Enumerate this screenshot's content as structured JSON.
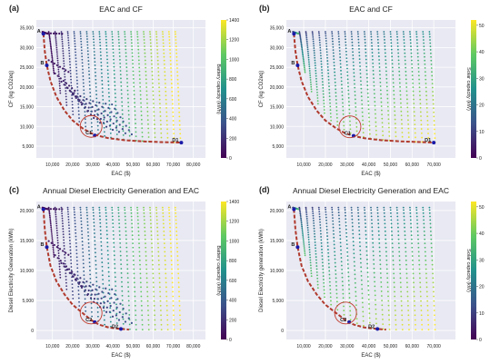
{
  "colors": {
    "plot_bg": "#e8e9f2",
    "grid": "#ffffff",
    "pareto": "#b03a2e",
    "point_label": "#1a1aa8",
    "circle": "#c0392b",
    "viridis": [
      "#440154",
      "#3b528b",
      "#21918c",
      "#5ec962",
      "#fde725"
    ]
  },
  "panels": [
    {
      "tag": "(a)",
      "title": "EAC and CF",
      "xlabel": "EAC ($)",
      "ylabel": "CF (kg CO2eq)",
      "cbar_label": "Battery capacity (kWh)",
      "cbar_ticks": [
        "0",
        "200",
        "400",
        "600",
        "800",
        "1000",
        "1200",
        "1400"
      ],
      "x_ticks": [
        "10,000",
        "20,000",
        "30,000",
        "40,000",
        "50,000",
        "60,000",
        "70,000",
        "80,000"
      ],
      "y_ticks": [
        "5,000",
        "10,000",
        "15,000",
        "20,000",
        "25,000",
        "30,000",
        "35,000"
      ],
      "point_labels": [
        "A",
        "B",
        "C1",
        "D1"
      ]
    },
    {
      "tag": "(b)",
      "title": "EAC and CF",
      "xlabel": "EAC ($)",
      "ylabel": "CF (kg CO2eq)",
      "cbar_label": "Solar capacity (kW)",
      "cbar_ticks": [
        "0",
        "10",
        "20",
        "30",
        "40",
        "50"
      ],
      "x_ticks": [
        "10,000",
        "20,000",
        "30,000",
        "40,000",
        "50,000",
        "60,000",
        "70,000"
      ],
      "y_ticks": [
        "5,000",
        "10,000",
        "15,000",
        "20,000",
        "25,000",
        "30,000",
        "35,000"
      ],
      "point_labels": [
        "A",
        "B",
        "C1",
        "D1"
      ]
    },
    {
      "tag": "(c)",
      "title": "Annual Diesel Electricity Generation and EAC",
      "xlabel": "EAC ($)",
      "ylabel": "Diesel Electricity Generation (kWh)",
      "cbar_label": "Battery capacity (kWh)",
      "cbar_ticks": [
        "0",
        "200",
        "400",
        "600",
        "800",
        "1000",
        "1200",
        "1400"
      ],
      "x_ticks": [
        "10,000",
        "20,000",
        "30,000",
        "40,000",
        "50,000",
        "60,000",
        "70,000",
        "80,000"
      ],
      "y_ticks": [
        "0",
        "5,000",
        "10,000",
        "15,000",
        "20,000"
      ],
      "point_labels": [
        "A",
        "B",
        "C2",
        "D2"
      ]
    },
    {
      "tag": "(d)",
      "title": "Annual Diesel Electricity Generation and EAC",
      "xlabel": "EAC ($)",
      "ylabel": "Diesel Electricity generation (kWh)",
      "cbar_label": "Solar capacity (kW)",
      "cbar_ticks": [
        "0",
        "10",
        "20",
        "30",
        "40",
        "50"
      ],
      "x_ticks": [
        "10,000",
        "20,000",
        "30,000",
        "40,000",
        "50,000",
        "60,000",
        "70,000"
      ],
      "y_ticks": [
        "0",
        "5,000",
        "10,000",
        "15,000",
        "20,000"
      ],
      "point_labels": [
        "A",
        "B",
        "C2",
        "D2"
      ]
    }
  ],
  "chart_data": [
    {
      "type": "scatter",
      "title": "EAC and CF",
      "xlabel": "EAC ($)",
      "ylabel": "CF (kg CO2eq)",
      "colorbar": "Battery capacity (kWh)",
      "xlim": [
        2000,
        86000
      ],
      "ylim": [
        2000,
        37000
      ],
      "clim": [
        0,
        1400
      ],
      "grid": true,
      "point_cloud": {
        "x_range": [
          5000,
          71000
        ],
        "y_range": [
          5000,
          34000
        ],
        "color_by": "Battery capacity (kWh)"
      },
      "pareto_front": {
        "x": [
          5500,
          6200,
          7200,
          9000,
          12000,
          16000,
          20000,
          25000,
          29000,
          33000,
          38000,
          46000,
          55000,
          65000,
          74000
        ],
        "y": [
          33500,
          29000,
          25500,
          21500,
          17500,
          14000,
          11500,
          9500,
          8300,
          7600,
          7000,
          6500,
          6200,
          6000,
          5900
        ]
      },
      "labeled_points": [
        {
          "label": "A",
          "x": 5500,
          "y": 33500
        },
        {
          "label": "B",
          "x": 7200,
          "y": 25500
        },
        {
          "label": "C1",
          "x": 31000,
          "y": 7700
        },
        {
          "label": "D1",
          "x": 74000,
          "y": 5900
        }
      ]
    },
    {
      "type": "scatter",
      "title": "EAC and CF",
      "xlabel": "EAC ($)",
      "ylabel": "CF (kg CO2eq)",
      "colorbar": "Solar capacity (kW)",
      "xlim": [
        2000,
        80000
      ],
      "ylim": [
        2000,
        37000
      ],
      "clim": [
        0,
        52
      ],
      "grid": true,
      "point_cloud": {
        "x_range": [
          5000,
          68000
        ],
        "y_range": [
          5000,
          34000
        ],
        "color_by": "Solar capacity (kW)"
      },
      "pareto_front": {
        "x": [
          5500,
          6200,
          7200,
          9000,
          12000,
          16000,
          20000,
          25000,
          29000,
          33000,
          38000,
          46000,
          55000,
          65000,
          70000
        ],
        "y": [
          33500,
          29000,
          25500,
          21500,
          17500,
          14000,
          11500,
          9500,
          8300,
          7600,
          7000,
          6500,
          6200,
          6000,
          5900
        ]
      },
      "labeled_points": [
        {
          "label": "A",
          "x": 5500,
          "y": 33500
        },
        {
          "label": "B",
          "x": 7200,
          "y": 25500
        },
        {
          "label": "C1",
          "x": 33000,
          "y": 7600
        },
        {
          "label": "D1",
          "x": 70000,
          "y": 5900
        }
      ]
    },
    {
      "type": "scatter",
      "title": "Annual Diesel Electricity Generation and EAC",
      "xlabel": "EAC ($)",
      "ylabel": "Diesel Electricity Generation (kWh)",
      "colorbar": "Battery capacity (kWh)",
      "xlim": [
        2000,
        86000
      ],
      "ylim": [
        -1500,
        21500
      ],
      "clim": [
        0,
        1400
      ],
      "grid": true,
      "point_cloud": {
        "x_range": [
          5000,
          71000
        ],
        "y_range": [
          0,
          20500
        ],
        "color_by": "Battery capacity (kWh)"
      },
      "pareto_front": {
        "x": [
          5500,
          6200,
          7200,
          9000,
          12000,
          16000,
          20000,
          25000,
          29000,
          33000,
          38000,
          44000,
          48000
        ],
        "y": [
          20200,
          16800,
          13900,
          10800,
          8200,
          6000,
          4300,
          2900,
          1800,
          1000,
          500,
          250,
          150
        ]
      },
      "labeled_points": [
        {
          "label": "A",
          "x": 5500,
          "y": 20200
        },
        {
          "label": "B",
          "x": 7200,
          "y": 13900
        },
        {
          "label": "C2",
          "x": 31000,
          "y": 1400
        },
        {
          "label": "D2",
          "x": 44000,
          "y": 250
        }
      ]
    },
    {
      "type": "scatter",
      "title": "Annual Diesel Electricity Generation and EAC",
      "xlabel": "EAC ($)",
      "ylabel": "Diesel Electricity generation (kWh)",
      "colorbar": "Solar capacity (kW)",
      "xlim": [
        2000,
        80000
      ],
      "ylim": [
        -1500,
        21500
      ],
      "clim": [
        0,
        52
      ],
      "grid": true,
      "point_cloud": {
        "x_range": [
          5000,
          68000
        ],
        "y_range": [
          0,
          20500
        ],
        "color_by": "Solar capacity (kW)"
      },
      "pareto_front": {
        "x": [
          5500,
          6200,
          7200,
          9000,
          12000,
          16000,
          20000,
          25000,
          29000,
          33000,
          38000,
          44000,
          48000
        ],
        "y": [
          20200,
          16800,
          13900,
          10800,
          8200,
          6000,
          4300,
          2900,
          1800,
          1000,
          500,
          250,
          150
        ]
      },
      "labeled_points": [
        {
          "label": "A",
          "x": 5500,
          "y": 20200
        },
        {
          "label": "B",
          "x": 7200,
          "y": 13900
        },
        {
          "label": "C2",
          "x": 31000,
          "y": 1400
        },
        {
          "label": "D2",
          "x": 44000,
          "y": 250
        }
      ]
    }
  ]
}
